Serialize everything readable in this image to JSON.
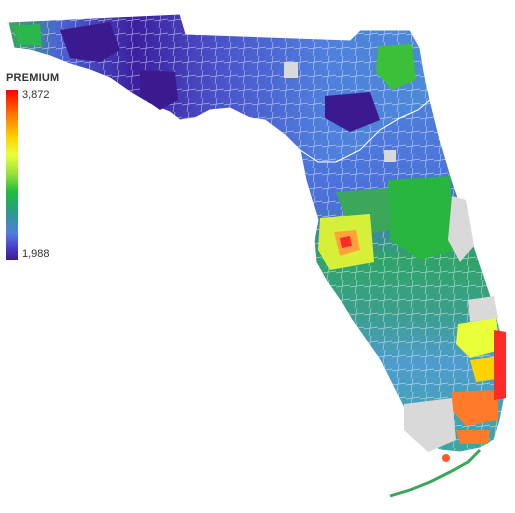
{
  "legend": {
    "title": "PREMIUM",
    "max_label": "3,872",
    "min_label": "1,988",
    "color_high": "#ff0000",
    "color_low": "#3b1a8f"
  },
  "map": {
    "region": "Florida ZIP-code choropleth",
    "no_data_color": "#d9d9d9",
    "border_color": "#ffffff"
  }
}
